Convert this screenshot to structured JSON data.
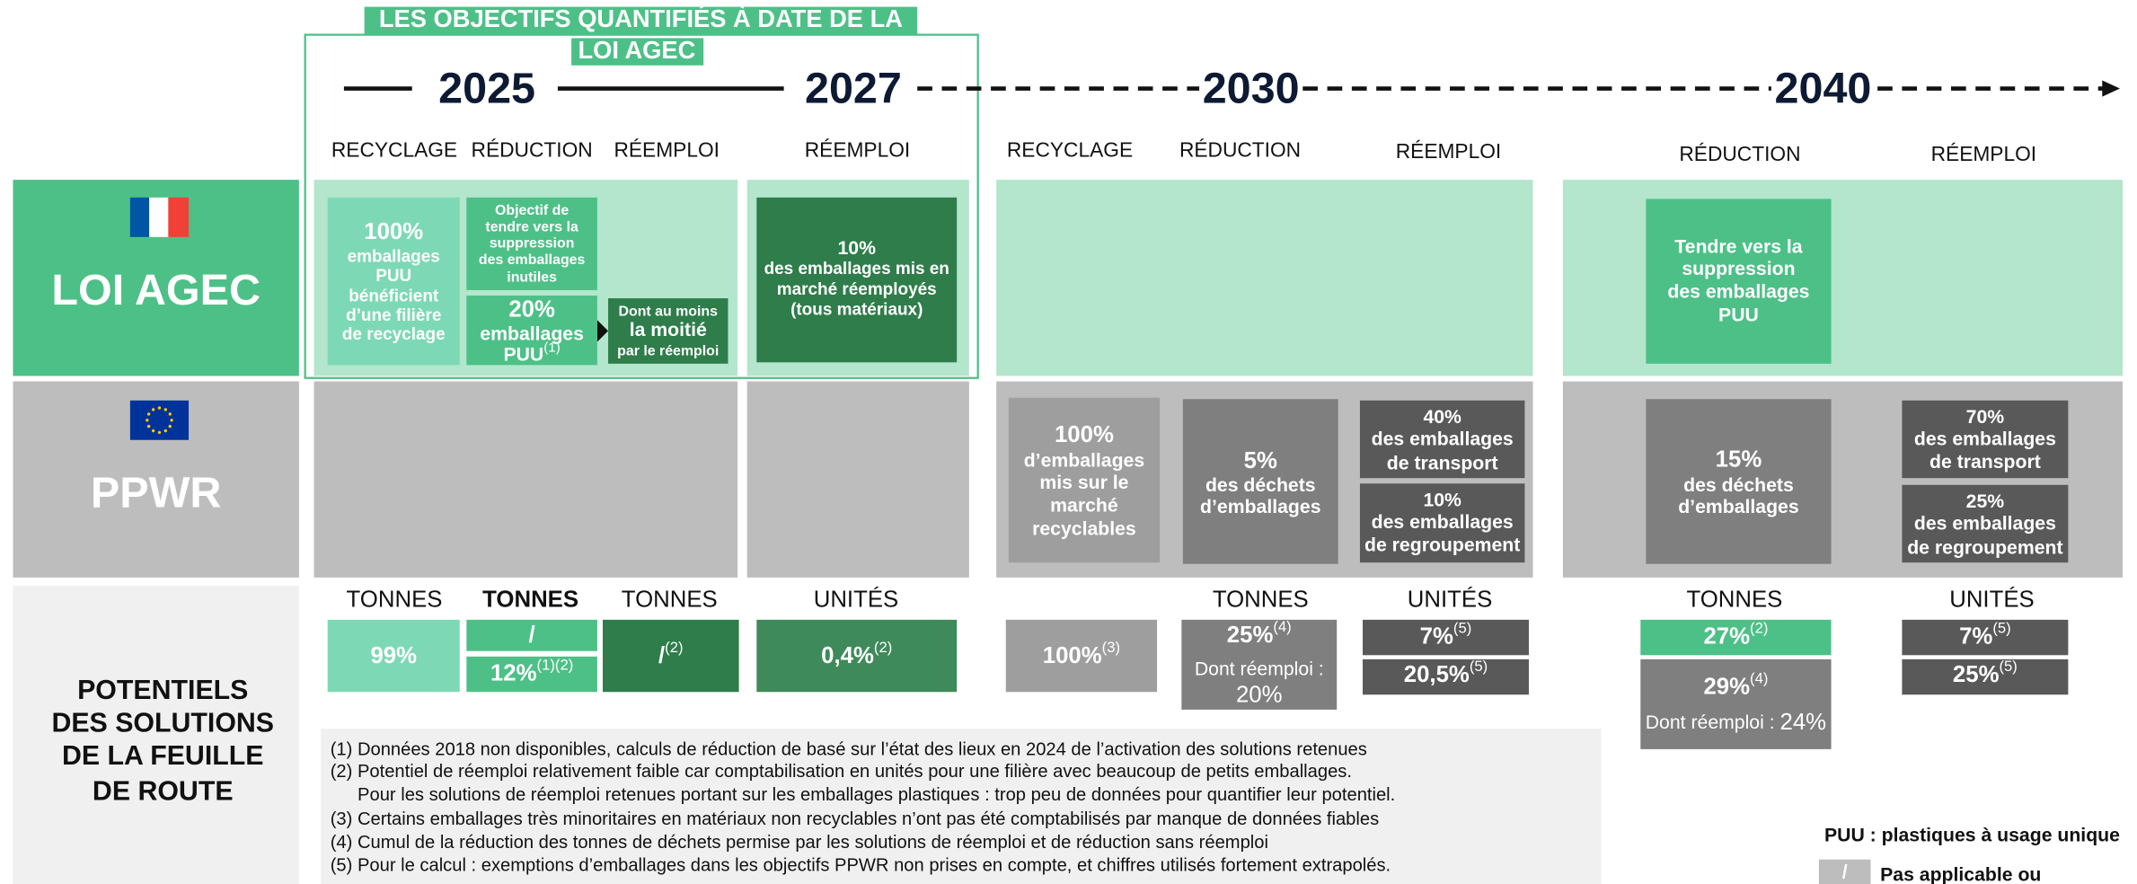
{
  "title_lines": [
    "LES OBJECTIFS QUANTIFIÉS À DATE DE LA",
    "LOI AGEC"
  ],
  "years": [
    "2025",
    "2027",
    "2030",
    "2040"
  ],
  "column_headers": [
    "RECYCLAGE",
    "RÉDUCTION",
    "RÉEMPLOI",
    "RÉEMPLOI",
    "RECYCLAGE",
    "RÉDUCTION",
    "RÉEMPLOI",
    "RÉDUCTION",
    "RÉEMPLOI"
  ],
  "rows": {
    "agec": "LOI AGEC",
    "ppwr": "PPWR",
    "potentials": [
      "POTENTIELS",
      "DES SOLUTIONS",
      "DE LA FEUILLE",
      "DE ROUTE"
    ]
  },
  "agec_boxes": [
    {
      "lines": [
        "100%",
        "emballages",
        "PUU",
        "bénéficient",
        "d’une filière",
        "de recyclage"
      ]
    },
    {
      "lines": [
        "Objectif de",
        "tendre vers la",
        "suppression",
        "des emballages",
        "inutiles"
      ]
    },
    {
      "lines": [
        "20%",
        "emballages",
        "PUU"
      ],
      "note": "(1)"
    },
    {
      "lines": [
        "Dont au moins",
        "la moitié",
        "par le réemploi"
      ]
    },
    {
      "lines": [
        "10%",
        "des emballages mis en",
        "marché réemployés",
        "(tous matériaux)"
      ]
    },
    {
      "lines": [
        "Tendre vers la",
        "suppression",
        "des emballages",
        "PUU"
      ]
    }
  ],
  "ppwr_boxes": [
    {
      "lines": [
        "100%",
        "d’emballages",
        "mis sur le",
        "marché",
        "recyclables"
      ]
    },
    {
      "lines": [
        "5%",
        "des déchets",
        "d’emballages"
      ]
    },
    {
      "lines": [
        "40%",
        "des emballages",
        "de transport"
      ]
    },
    {
      "lines": [
        "10%",
        "des emballages",
        "de regroupement"
      ]
    },
    {
      "lines": [
        "15%",
        "des déchets",
        "d’emballages"
      ]
    },
    {
      "lines": [
        "70%",
        "des emballages",
        "de transport"
      ]
    },
    {
      "lines": [
        "25%",
        "des emballages",
        "de regroupement"
      ]
    }
  ],
  "potential_units": [
    "TONNES",
    "TONNES",
    "TONNES",
    "UNITÉS",
    "TONNES",
    "UNITÉS",
    "TONNES",
    "UNITÉS"
  ],
  "potential_values": [
    {
      "value": "99%"
    },
    {
      "value": "/"
    },
    {
      "value": "12%",
      "note": "(1)(2)"
    },
    {
      "value": "/",
      "note": "(2)"
    },
    {
      "value": "0,4%",
      "note": "(2)"
    },
    {
      "value": "100%",
      "note": "(3)"
    },
    {
      "value": "25%",
      "note": "(4)",
      "extra": [
        "Dont réemploi :",
        "20%"
      ]
    },
    {
      "value": "7%",
      "note": "(5)"
    },
    {
      "value": "20,5%",
      "note": "(5)"
    },
    {
      "value": "27%",
      "note": "(2)"
    },
    {
      "value": "29%",
      "note": "(4)",
      "extra": [
        "Dont réemploi : ",
        "24%"
      ]
    },
    {
      "value": "7%",
      "note": "(5)"
    },
    {
      "value": "25%",
      "note": "(5)"
    }
  ],
  "footnotes": [
    "(1) Données 2018 non disponibles, calculs de réduction de basé sur l’état des lieux en 2024 de l’activation des solutions retenues",
    "(2) Potentiel de réemploi relativement faible car comptabilisation en unités pour une filière avec beaucoup de petits emballages.",
    "Pour les solutions de réemploi retenues portant sur les emballages plastiques : trop peu de données pour quantifier leur potentiel.",
    "(3) Certains emballages très minoritaires en matériaux non recyclables n’ont pas été comptabilisés par manque de données fiables",
    "(4) Cumul de la réduction des tonnes de déchets permise par les solutions de réemploi et de réduction sans réemploi",
    "(5) Pour le calcul : exemptions d’emballages dans les objectifs PPWR non prises en compte, et chiffres utilisés fortement extrapolés."
  ],
  "legend": {
    "puu": "PUU : plastiques à usage unique",
    "na_symbol": "/",
    "na": "Pas applicable ou"
  }
}
